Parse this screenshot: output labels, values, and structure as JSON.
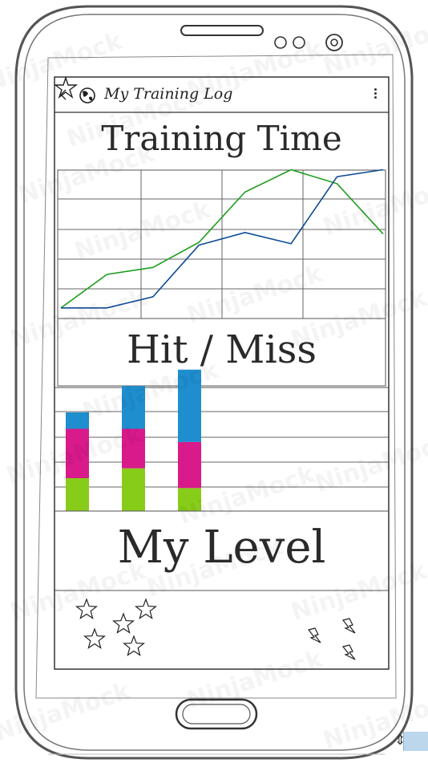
{
  "app": {
    "title": "My Training Log",
    "star_icon": "star-icon",
    "globe_icon": "globe-icon",
    "menu_icon": "overflow-menu-icon"
  },
  "sections": {
    "training_time": "Training Time",
    "hit_miss": "Hit / Miss",
    "my_level": "My Level"
  },
  "chart_data": [
    {
      "type": "line",
      "title": "",
      "x": [
        1,
        2,
        3,
        4,
        5,
        6,
        7,
        8
      ],
      "ylim": [
        0,
        5
      ],
      "grid": true,
      "series": [
        {
          "color": "#1f9e1f",
          "values": [
            0.15,
            1.35,
            1.6,
            2.5,
            4.3,
            5.1,
            4.6,
            2.8
          ]
        },
        {
          "color": "#0d4a94",
          "values": [
            0.15,
            0.15,
            0.55,
            2.4,
            2.85,
            2.45,
            4.85,
            5.1
          ]
        }
      ]
    },
    {
      "type": "bar",
      "title": "",
      "categories": [
        "",
        "",
        ""
      ],
      "stacked": true,
      "grid": true,
      "series": [
        {
          "color": "#88cc1a",
          "values": [
            1.0,
            1.3,
            0.7
          ]
        },
        {
          "color": "#d81a8a",
          "values": [
            1.5,
            1.2,
            1.4
          ]
        },
        {
          "color": "#1f8ecf",
          "values": [
            0.5,
            1.3,
            2.2
          ]
        }
      ]
    }
  ],
  "level": {
    "star_count": 5,
    "bolt_count": 3,
    "star_icon": "star-icon",
    "bolt_icon": "lightning-icon"
  },
  "watermark": "NinjaMock"
}
